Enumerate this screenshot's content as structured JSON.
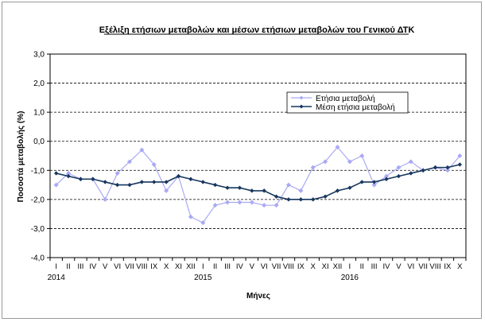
{
  "chart_data": {
    "type": "line",
    "title": "Εξέλιξη ετήσιων μεταβολών και μέσων ετήσιων μεταβολών του Γενικού ΔΤΚ",
    "xlabel": "Μήνες",
    "ylabel": "Ποσοστά μεταβολής (%)",
    "ylim": [
      -4.0,
      3.0
    ],
    "yticks": [
      "3,0",
      "2,0",
      "1,0",
      "0,0",
      "-1,0",
      "-2,0",
      "-3,0",
      "-4,0"
    ],
    "categories": [
      "I",
      "II",
      "III",
      "IV",
      "V",
      "VI",
      "VII",
      "VIII",
      "IX",
      "X",
      "XI",
      "XII",
      "I",
      "II",
      "III",
      "IV",
      "V",
      "VI",
      "VII",
      "VIII",
      "IX",
      "X",
      "XI",
      "XII",
      "I",
      "II",
      "III",
      "IV",
      "V",
      "VI",
      "VII",
      "VIII",
      "IX",
      "X"
    ],
    "year_labels": [
      {
        "label": "2014",
        "index": 0
      },
      {
        "label": "2015",
        "index": 12
      },
      {
        "label": "2016",
        "index": 24
      }
    ],
    "grid": true,
    "legend_position": "top-right",
    "series": [
      {
        "name": "Ετήσια μεταβολή",
        "color": "#a9a9f5",
        "values": [
          -1.5,
          -1.1,
          -1.3,
          -1.3,
          -2.0,
          -1.1,
          -0.7,
          -0.3,
          -0.8,
          -1.7,
          -1.2,
          -2.6,
          -2.8,
          -2.2,
          -2.1,
          -2.1,
          -2.1,
          -2.2,
          -2.2,
          -1.5,
          -1.7,
          -0.9,
          -0.7,
          -0.2,
          -0.7,
          -0.5,
          -1.5,
          -1.2,
          -0.9,
          -0.7,
          -1.0,
          -0.9,
          -1.0,
          -0.5
        ]
      },
      {
        "name": "Μέση ετήσια μεταβολή",
        "color": "#17375e",
        "values": [
          -1.1,
          -1.2,
          -1.3,
          -1.3,
          -1.4,
          -1.5,
          -1.5,
          -1.4,
          -1.4,
          -1.4,
          -1.2,
          -1.3,
          -1.4,
          -1.5,
          -1.6,
          -1.6,
          -1.7,
          -1.7,
          -1.9,
          -2.0,
          -2.0,
          -2.0,
          -1.9,
          -1.7,
          -1.6,
          -1.4,
          -1.4,
          -1.3,
          -1.2,
          -1.1,
          -1.0,
          -0.9,
          -0.9,
          -0.8
        ]
      }
    ]
  }
}
